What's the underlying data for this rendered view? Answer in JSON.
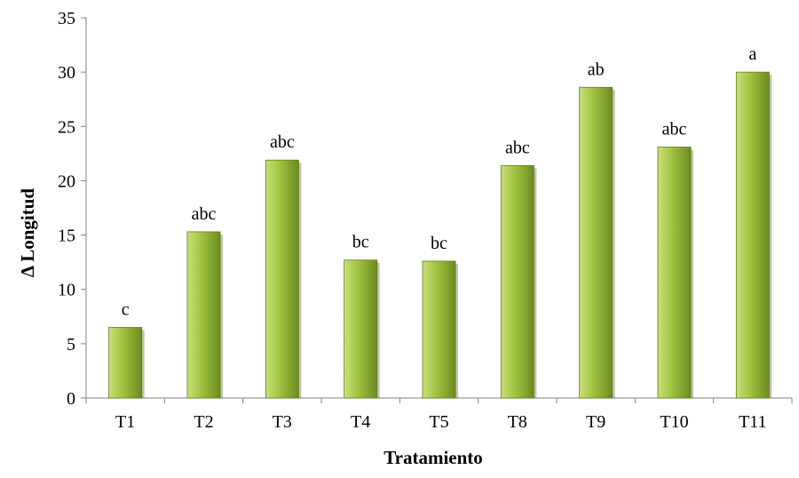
{
  "chart_data": {
    "type": "bar",
    "title": "",
    "xlabel": "Tratamiento",
    "ylabel": "Δ Longitud",
    "categories": [
      "T1",
      "T2",
      "T3",
      "T4",
      "T5",
      "T8",
      "T9",
      "T10",
      "T11"
    ],
    "values": [
      6.5,
      15.3,
      21.9,
      12.7,
      12.6,
      21.4,
      28.6,
      23.1,
      30.0
    ],
    "data_labels": [
      "c",
      "abc",
      "abc",
      "bc",
      "bc",
      "abc",
      "ab",
      "abc",
      "a"
    ],
    "ylim": [
      0,
      35
    ],
    "yticks": [
      0,
      5,
      10,
      15,
      20,
      25,
      30,
      35
    ],
    "grid": false,
    "legend": "none",
    "colors": {
      "bar_light": "#c9e07a",
      "bar_mid": "#9fc13d",
      "bar_dark": "#6b8a22",
      "bar_edge": "#5f7d1c",
      "axis": "#808080"
    }
  }
}
